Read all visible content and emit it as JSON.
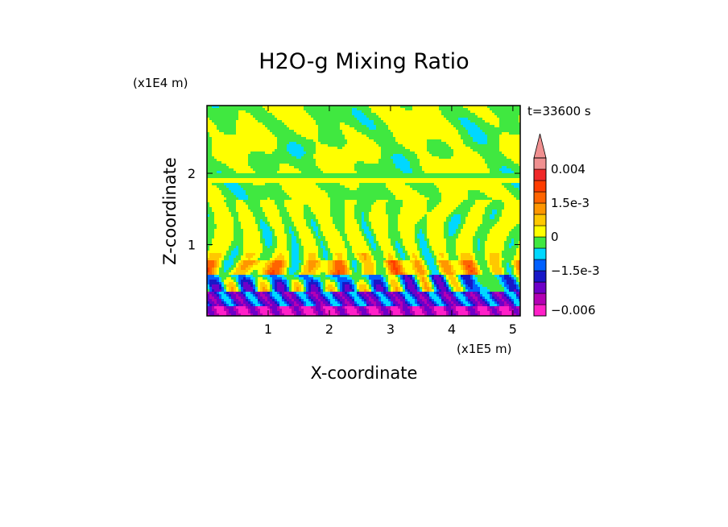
{
  "chart_data": {
    "type": "heatmap",
    "title": "H2O-g Mixing Ratio",
    "xlabel": "X-coordinate",
    "ylabel": "Z-coordinate",
    "x_unit_label": "(x1E5 m)",
    "y_unit_label": "(x1E4 m)",
    "time_label": "t=33600 s",
    "xlim": [
      0,
      5.12
    ],
    "ylim": [
      0,
      2.95
    ],
    "x_ticks": [
      1,
      2,
      3,
      4,
      5
    ],
    "x_tick_labels": [
      "1",
      "2",
      "3",
      "4",
      "5"
    ],
    "y_ticks": [
      1,
      2
    ],
    "y_tick_labels": [
      "1",
      "2"
    ],
    "colorbar": {
      "levels": [
        {
          "color": "#ff20c8",
          "lo": -0.009,
          "hi": -0.005
        },
        {
          "color": "#b400b4",
          "lo": -0.005,
          "hi": -0.003
        },
        {
          "color": "#6e00c8",
          "lo": -0.003,
          "hi": -0.002
        },
        {
          "color": "#1818c8",
          "lo": -0.002,
          "hi": -0.0015
        },
        {
          "color": "#0060ff",
          "lo": -0.0015,
          "hi": -0.001
        },
        {
          "color": "#00d8ff",
          "lo": -0.001,
          "hi": -0.0005
        },
        {
          "color": "#40e840",
          "lo": -0.0005,
          "hi": 0.0
        },
        {
          "color": "#ffff00",
          "lo": 0.0,
          "hi": 0.0005
        },
        {
          "color": "#ffc800",
          "lo": 0.0005,
          "hi": 0.001
        },
        {
          "color": "#ff9600",
          "lo": 0.001,
          "hi": 0.0015
        },
        {
          "color": "#ff6400",
          "lo": 0.0015,
          "hi": 0.002
        },
        {
          "color": "#ff3c00",
          "lo": 0.002,
          "hi": 0.003
        },
        {
          "color": "#f02828",
          "lo": 0.003,
          "hi": 0.004
        },
        {
          "color": "#f09090",
          "lo": 0.004,
          "hi": 0.006
        }
      ],
      "tick_labels": [
        {
          "label": "0.004",
          "value": 0.004
        },
        {
          "label": "1.5e-3",
          "value": 0.0015
        },
        {
          "label": "0",
          "value": 0.0
        },
        {
          "label": "−1.5e-3",
          "value": -0.0015
        },
        {
          "label": "−0.006",
          "value": -0.006
        }
      ],
      "extend_max": true
    }
  }
}
